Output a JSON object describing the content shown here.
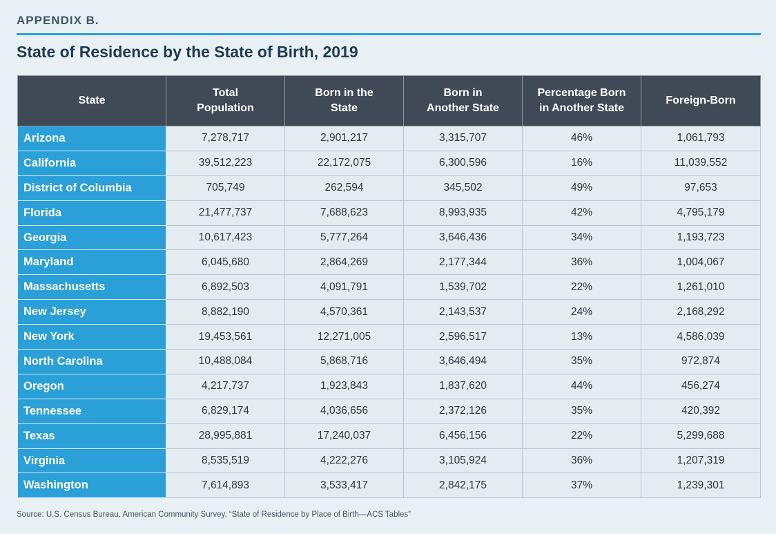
{
  "header": {
    "label": "APPENDIX B.",
    "title": "State of Residence by the State of Birth, 2019"
  },
  "table": {
    "columns": [
      [
        "State"
      ],
      [
        "Total",
        "Population"
      ],
      [
        "Born in the",
        "State"
      ],
      [
        "Born in",
        "Another State"
      ],
      [
        "Percentage Born",
        "in Another State"
      ],
      [
        "Foreign-Born"
      ]
    ],
    "rows": [
      [
        "Arizona",
        "7,278,717",
        "2,901,217",
        "3,315,707",
        "46%",
        "1,061,793"
      ],
      [
        "California",
        "39,512,223",
        "22,172,075",
        "6,300,596",
        "16%",
        "11,039,552"
      ],
      [
        "District of Columbia",
        "705,749",
        "262,594",
        "345,502",
        "49%",
        "97,653"
      ],
      [
        "Florida",
        "21,477,737",
        "7,688,623",
        "8,993,935",
        "42%",
        "4,795,179"
      ],
      [
        "Georgia",
        "10,617,423",
        "5,777,264",
        "3,646,436",
        "34%",
        "1,193,723"
      ],
      [
        "Maryland",
        "6,045,680",
        "2,864,269",
        "2,177,344",
        "36%",
        "1,004,067"
      ],
      [
        "Massachusetts",
        "6,892,503",
        "4,091,791",
        "1,539,702",
        "22%",
        "1,261,010"
      ],
      [
        "New Jersey",
        "8,882,190",
        "4,570,361",
        "2,143,537",
        "24%",
        "2,168,292"
      ],
      [
        "New York",
        "19,453,561",
        "12,271,005",
        "2,596,517",
        "13%",
        "4,586,039"
      ],
      [
        "North Carolina",
        "10,488,084",
        "5,868,716",
        "3,646,494",
        "35%",
        "972,874"
      ],
      [
        "Oregon",
        "4,217,737",
        "1,923,843",
        "1,837,620",
        "44%",
        "456,274"
      ],
      [
        "Tennessee",
        "6,829,174",
        "4,036,656",
        "2,372,126",
        "35%",
        "420,392"
      ],
      [
        "Texas",
        "28,995,881",
        "17,240,037",
        "6,456,156",
        "22%",
        "5,299,688"
      ],
      [
        "Virginia",
        "8,535,519",
        "4,222,276",
        "3,105,924",
        "36%",
        "1,207,319"
      ],
      [
        "Washington",
        "7,614,893",
        "3,533,417",
        "2,842,175",
        "37%",
        "1,239,301"
      ]
    ]
  },
  "footer": {
    "source": "Source: U.S. Census Bureau, American Community Survey, “State of Residence by Place of Birth—ACS Tables”"
  }
}
